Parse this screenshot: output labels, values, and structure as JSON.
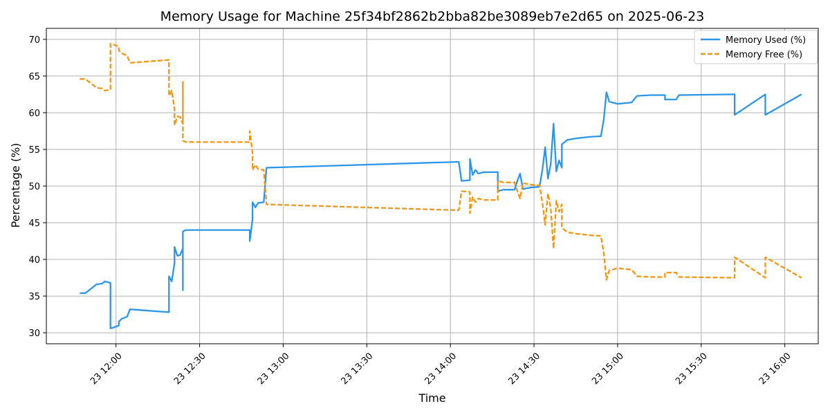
{
  "chart_data": {
    "type": "line",
    "title": "Memory Usage for Machine 25f34bf2862b2bba82be3089eb7e2d65 on 2025-06-23",
    "xlabel": "Time",
    "ylabel": "Percentage (%)",
    "xlim": [
      "2025-06-23 11:35",
      "2025-06-23 16:12"
    ],
    "ylim": [
      28.5,
      71.5
    ],
    "grid": true,
    "legend_position": "top-right",
    "x_ticks": [
      {
        "t": "2025-06-23 12:00",
        "label": "23 12:00"
      },
      {
        "t": "2025-06-23 12:30",
        "label": "23 12:30"
      },
      {
        "t": "2025-06-23 13:00",
        "label": "23 13:00"
      },
      {
        "t": "2025-06-23 13:30",
        "label": "23 13:30"
      },
      {
        "t": "2025-06-23 14:00",
        "label": "23 14:00"
      },
      {
        "t": "2025-06-23 14:30",
        "label": "23 14:30"
      },
      {
        "t": "2025-06-23 15:00",
        "label": "23 15:00"
      },
      {
        "t": "2025-06-23 15:30",
        "label": "23 15:30"
      },
      {
        "t": "2025-06-23 16:00",
        "label": "23 16:00"
      }
    ],
    "y_ticks": [
      30,
      35,
      40,
      45,
      50,
      55,
      60,
      65,
      70
    ],
    "series": [
      {
        "name": "Memory Used (%)",
        "color": "#2b95e9",
        "dash": "solid",
        "points": [
          [
            "2025-06-23 11:47",
            35.4
          ],
          [
            "2025-06-23 11:49",
            35.4
          ],
          [
            "2025-06-23 11:51",
            36.0
          ],
          [
            "2025-06-23 11:53",
            36.6
          ],
          [
            "2025-06-23 11:55",
            36.7
          ],
          [
            "2025-06-23 11:56",
            37.0
          ],
          [
            "2025-06-23 11:57",
            36.9
          ],
          [
            "2025-06-23 11:58",
            36.8
          ],
          [
            "2025-06-23 11:58",
            30.6
          ],
          [
            "2025-06-23 11:59",
            30.7
          ],
          [
            "2025-06-23 12:01",
            31.0
          ],
          [
            "2025-06-23 12:01",
            31.5
          ],
          [
            "2025-06-23 12:02",
            31.9
          ],
          [
            "2025-06-23 12:04",
            32.2
          ],
          [
            "2025-06-23 12:05",
            33.2
          ],
          [
            "2025-06-23 12:19",
            32.8
          ],
          [
            "2025-06-23 12:19",
            37.7
          ],
          [
            "2025-06-23 12:20",
            37.0
          ],
          [
            "2025-06-23 12:21",
            39.5
          ],
          [
            "2025-06-23 12:21",
            41.7
          ],
          [
            "2025-06-23 12:22",
            40.5
          ],
          [
            "2025-06-23 12:23",
            40.6
          ],
          [
            "2025-06-23 12:24",
            41.5
          ],
          [
            "2025-06-23 12:24",
            35.8
          ],
          [
            "2025-06-23 12:24",
            43.8
          ],
          [
            "2025-06-23 12:25",
            44.0
          ],
          [
            "2025-06-23 12:48",
            44.0
          ],
          [
            "2025-06-23 12:48",
            42.5
          ],
          [
            "2025-06-23 12:49",
            45.5
          ],
          [
            "2025-06-23 12:49",
            47.8
          ],
          [
            "2025-06-23 12:50",
            47.1
          ],
          [
            "2025-06-23 12:51",
            47.7
          ],
          [
            "2025-06-23 12:53",
            47.8
          ],
          [
            "2025-06-23 12:54",
            52.5
          ],
          [
            "2025-06-23 14:03",
            53.3
          ],
          [
            "2025-06-23 14:04",
            50.7
          ],
          [
            "2025-06-23 14:07",
            50.8
          ],
          [
            "2025-06-23 14:07",
            53.7
          ],
          [
            "2025-06-23 14:08",
            51.5
          ],
          [
            "2025-06-23 14:09",
            52.2
          ],
          [
            "2025-06-23 14:10",
            51.7
          ],
          [
            "2025-06-23 14:12",
            51.9
          ],
          [
            "2025-06-23 14:17",
            51.9
          ],
          [
            "2025-06-23 14:17",
            49.3
          ],
          [
            "2025-06-23 14:19",
            49.5
          ],
          [
            "2025-06-23 14:23",
            49.5
          ],
          [
            "2025-06-23 14:24",
            50.7
          ],
          [
            "2025-06-23 14:25",
            51.7
          ],
          [
            "2025-06-23 14:26",
            49.6
          ],
          [
            "2025-06-23 14:29",
            49.8
          ],
          [
            "2025-06-23 14:32",
            49.9
          ],
          [
            "2025-06-23 14:33",
            52.2
          ],
          [
            "2025-06-23 14:34",
            55.3
          ],
          [
            "2025-06-23 14:35",
            51.0
          ],
          [
            "2025-06-23 14:36",
            53.0
          ],
          [
            "2025-06-23 14:37",
            58.5
          ],
          [
            "2025-06-23 14:38",
            52.0
          ],
          [
            "2025-06-23 14:39",
            53.5
          ],
          [
            "2025-06-23 14:40",
            52.5
          ],
          [
            "2025-06-23 14:40",
            55.7
          ],
          [
            "2025-06-23 14:42",
            56.3
          ],
          [
            "2025-06-23 14:45",
            56.5
          ],
          [
            "2025-06-23 14:50",
            56.7
          ],
          [
            "2025-06-23 14:54",
            56.8
          ],
          [
            "2025-06-23 14:55",
            59.0
          ],
          [
            "2025-06-23 14:56",
            62.8
          ],
          [
            "2025-06-23 14:57",
            61.5
          ],
          [
            "2025-06-23 15:00",
            61.2
          ],
          [
            "2025-06-23 15:05",
            61.4
          ],
          [
            "2025-06-23 15:07",
            62.3
          ],
          [
            "2025-06-23 15:12",
            62.4
          ],
          [
            "2025-06-23 15:17",
            62.4
          ],
          [
            "2025-06-23 15:17",
            61.8
          ],
          [
            "2025-06-23 15:21",
            61.8
          ],
          [
            "2025-06-23 15:22",
            62.4
          ],
          [
            "2025-06-23 15:42",
            62.5
          ],
          [
            "2025-06-23 15:42",
            59.7
          ],
          [
            "2025-06-23 15:53",
            62.5
          ],
          [
            "2025-06-23 15:53",
            59.7
          ],
          [
            "2025-06-23 16:06",
            62.5
          ]
        ]
      },
      {
        "name": "Memory Free (%)",
        "color": "#f5950f",
        "dash": "dashed",
        "points": [
          [
            "2025-06-23 11:47",
            64.6
          ],
          [
            "2025-06-23 11:49",
            64.6
          ],
          [
            "2025-06-23 11:51",
            64.0
          ],
          [
            "2025-06-23 11:53",
            63.4
          ],
          [
            "2025-06-23 11:55",
            63.3
          ],
          [
            "2025-06-23 11:56",
            63.0
          ],
          [
            "2025-06-23 11:57",
            63.1
          ],
          [
            "2025-06-23 11:58",
            63.2
          ],
          [
            "2025-06-23 11:58",
            69.4
          ],
          [
            "2025-06-23 11:59",
            69.3
          ],
          [
            "2025-06-23 12:01",
            69.0
          ],
          [
            "2025-06-23 12:01",
            68.5
          ],
          [
            "2025-06-23 12:02",
            68.1
          ],
          [
            "2025-06-23 12:04",
            67.8
          ],
          [
            "2025-06-23 12:05",
            66.8
          ],
          [
            "2025-06-23 12:19",
            67.2
          ],
          [
            "2025-06-23 12:19",
            62.3
          ],
          [
            "2025-06-23 12:20",
            63.0
          ],
          [
            "2025-06-23 12:21",
            60.5
          ],
          [
            "2025-06-23 12:21",
            58.3
          ],
          [
            "2025-06-23 12:22",
            59.5
          ],
          [
            "2025-06-23 12:23",
            59.4
          ],
          [
            "2025-06-23 12:24",
            58.5
          ],
          [
            "2025-06-23 12:24",
            64.2
          ],
          [
            "2025-06-23 12:24",
            56.2
          ],
          [
            "2025-06-23 12:25",
            56.0
          ],
          [
            "2025-06-23 12:48",
            56.0
          ],
          [
            "2025-06-23 12:48",
            57.5
          ],
          [
            "2025-06-23 12:49",
            54.5
          ],
          [
            "2025-06-23 12:49",
            52.2
          ],
          [
            "2025-06-23 12:50",
            52.9
          ],
          [
            "2025-06-23 12:51",
            52.3
          ],
          [
            "2025-06-23 12:53",
            52.2
          ],
          [
            "2025-06-23 12:54",
            47.5
          ],
          [
            "2025-06-23 14:03",
            46.7
          ],
          [
            "2025-06-23 14:04",
            49.3
          ],
          [
            "2025-06-23 14:07",
            49.2
          ],
          [
            "2025-06-23 14:07",
            46.3
          ],
          [
            "2025-06-23 14:08",
            48.5
          ],
          [
            "2025-06-23 14:09",
            47.8
          ],
          [
            "2025-06-23 14:10",
            48.3
          ],
          [
            "2025-06-23 14:12",
            48.1
          ],
          [
            "2025-06-23 14:17",
            48.1
          ],
          [
            "2025-06-23 14:17",
            50.7
          ],
          [
            "2025-06-23 14:19",
            50.5
          ],
          [
            "2025-06-23 14:23",
            50.5
          ],
          [
            "2025-06-23 14:24",
            49.3
          ],
          [
            "2025-06-23 14:25",
            48.3
          ],
          [
            "2025-06-23 14:26",
            50.4
          ],
          [
            "2025-06-23 14:29",
            50.2
          ],
          [
            "2025-06-23 14:32",
            50.1
          ],
          [
            "2025-06-23 14:33",
            47.8
          ],
          [
            "2025-06-23 14:34",
            44.7
          ],
          [
            "2025-06-23 14:35",
            49.0
          ],
          [
            "2025-06-23 14:36",
            47.0
          ],
          [
            "2025-06-23 14:37",
            41.5
          ],
          [
            "2025-06-23 14:38",
            48.0
          ],
          [
            "2025-06-23 14:39",
            46.5
          ],
          [
            "2025-06-23 14:40",
            47.5
          ],
          [
            "2025-06-23 14:40",
            44.3
          ],
          [
            "2025-06-23 14:42",
            43.7
          ],
          [
            "2025-06-23 14:45",
            43.5
          ],
          [
            "2025-06-23 14:50",
            43.3
          ],
          [
            "2025-06-23 14:54",
            43.2
          ],
          [
            "2025-06-23 14:55",
            41.0
          ],
          [
            "2025-06-23 14:56",
            37.2
          ],
          [
            "2025-06-23 14:57",
            38.5
          ],
          [
            "2025-06-23 15:00",
            38.8
          ],
          [
            "2025-06-23 15:05",
            38.6
          ],
          [
            "2025-06-23 15:07",
            37.7
          ],
          [
            "2025-06-23 15:12",
            37.6
          ],
          [
            "2025-06-23 15:17",
            37.6
          ],
          [
            "2025-06-23 15:17",
            38.2
          ],
          [
            "2025-06-23 15:21",
            38.2
          ],
          [
            "2025-06-23 15:22",
            37.6
          ],
          [
            "2025-06-23 15:42",
            37.5
          ],
          [
            "2025-06-23 15:42",
            40.3
          ],
          [
            "2025-06-23 15:53",
            37.5
          ],
          [
            "2025-06-23 15:53",
            40.3
          ],
          [
            "2025-06-23 16:06",
            37.5
          ]
        ]
      }
    ]
  }
}
